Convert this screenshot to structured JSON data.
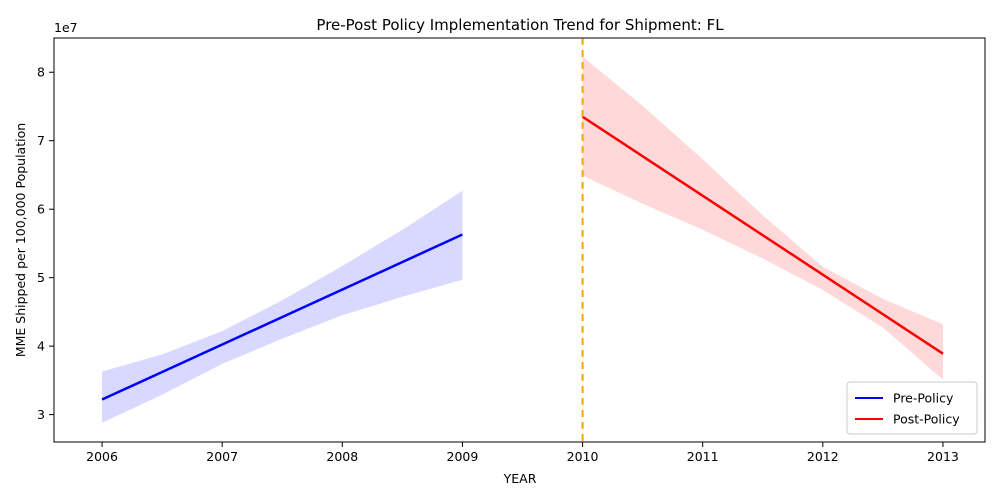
{
  "chart_data": {
    "type": "line",
    "title": "Pre-Post Policy Implementation Trend for Shipment: FL",
    "xlabel": "YEAR",
    "ylabel": "MME Shipped per 100,000 Population",
    "y_offset_label": "1e7",
    "y_scale": 10000000,
    "xlim": [
      2005.6,
      2013.35
    ],
    "ylim": [
      26000000,
      85000000
    ],
    "x_ticks": [
      2006,
      2007,
      2008,
      2009,
      2010,
      2011,
      2012,
      2013
    ],
    "x_tick_labels": [
      "2006",
      "2007",
      "2008",
      "2009",
      "2010",
      "2011",
      "2012",
      "2013"
    ],
    "y_ticks": [
      30000000,
      40000000,
      50000000,
      60000000,
      70000000,
      80000000
    ],
    "y_tick_labels": [
      "3",
      "4",
      "5",
      "6",
      "7",
      "8"
    ],
    "grid": false,
    "legend_position": "bottom-right",
    "policy_year": 2010,
    "policy_line_color": "#FFA500",
    "series": [
      {
        "name": "Pre-Policy",
        "color": "#0000FF",
        "band_color": "#0000FF",
        "x": [
          2006,
          2009
        ],
        "y": [
          32200000,
          56300000
        ],
        "ci_x": [
          2006,
          2006.5,
          2007,
          2007.5,
          2008,
          2008.5,
          2009
        ],
        "ci_upper": [
          36300000,
          38800000,
          42200000,
          46700000,
          51700000,
          57000000,
          62700000
        ],
        "ci_lower": [
          28800000,
          32900000,
          37400000,
          41100000,
          44500000,
          47200000,
          49700000
        ]
      },
      {
        "name": "Post-Policy",
        "color": "#FF0000",
        "band_color": "#FF0000",
        "x": [
          2010,
          2013
        ],
        "y": [
          73500000,
          38900000
        ],
        "ci_x": [
          2010,
          2010.5,
          2011,
          2011.5,
          2012,
          2012.5,
          2013
        ],
        "ci_upper": [
          82300000,
          75100000,
          67300000,
          59100000,
          51600000,
          46900000,
          43200000
        ],
        "ci_lower": [
          64900000,
          60800000,
          57000000,
          52800000,
          48200000,
          42700000,
          35100000
        ]
      }
    ]
  }
}
